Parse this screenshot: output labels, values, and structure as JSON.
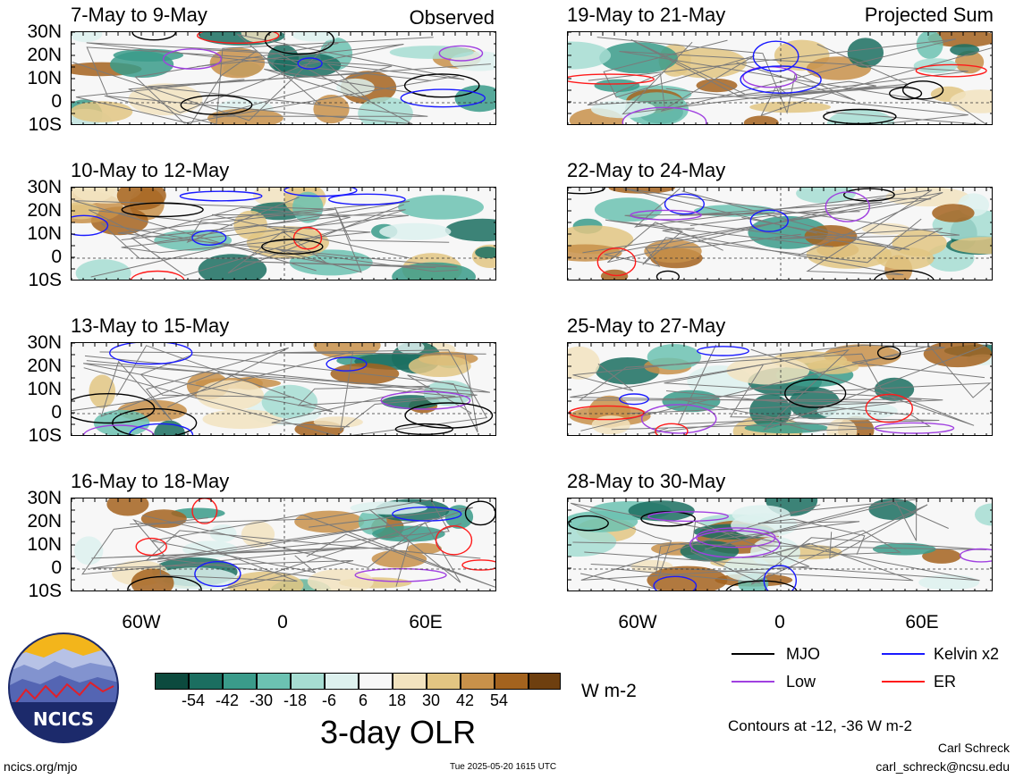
{
  "panels_left": [
    {
      "title": "7-May to 9-May",
      "tag": "Observed"
    },
    {
      "title": "10-May to 12-May",
      "tag": ""
    },
    {
      "title": "13-May to 15-May",
      "tag": ""
    },
    {
      "title": "16-May to 18-May",
      "tag": ""
    }
  ],
  "panels_right": [
    {
      "title": "19-May to 21-May",
      "tag": "Projected Sum"
    },
    {
      "title": "22-May to 24-May",
      "tag": ""
    },
    {
      "title": "25-May to 27-May",
      "tag": ""
    },
    {
      "title": "28-May to 30-May",
      "tag": ""
    }
  ],
  "lat_labels": [
    "30N",
    "20N",
    "10N",
    "0",
    "10S"
  ],
  "lon_labels": [
    "60W",
    "0",
    "60E"
  ],
  "legend": {
    "items": [
      {
        "label": "MJO",
        "color": "#000000"
      },
      {
        "label": "Kelvin x2",
        "color": "#1a1aff"
      },
      {
        "label": "Low",
        "color": "#a040e0"
      },
      {
        "label": "ER",
        "color": "#ff1a1a"
      }
    ],
    "contours_note": "Contours at -12, -36 W m-2"
  },
  "colorbar": {
    "title": "3-day OLR",
    "units": "W m-2",
    "ticks": [
      "-54",
      "-42",
      "-30",
      "-18",
      "-6",
      "6",
      "18",
      "30",
      "42",
      "54"
    ],
    "colors": [
      "#0c4a3e",
      "#1b6e60",
      "#3a9b8a",
      "#6cc2b2",
      "#a6ddd2",
      "#ddf1ee",
      "#f7f7f7",
      "#f2e3bf",
      "#e2c582",
      "#c8914a",
      "#a4631e",
      "#6e3f0f"
    ]
  },
  "logo": {
    "text": "NCICS"
  },
  "footer": {
    "site": "ncics.org/mjo",
    "timestamp": "Tue 2025-05-20 1615 UTC",
    "author": "Carl Schreck",
    "email": "carl_schreck@ncsu.edu"
  }
}
